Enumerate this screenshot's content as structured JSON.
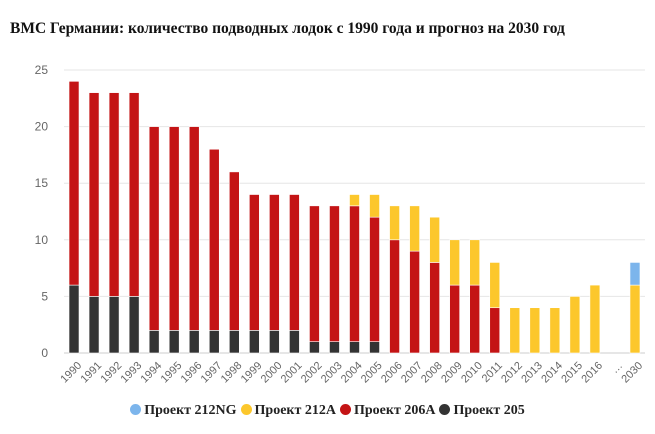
{
  "chart_data": {
    "type": "bar",
    "stacked": true,
    "title": "ВМС Германии: количество подводных лодок с 1990 года и прогноз на 2030 год",
    "xlabel": "",
    "ylabel": "",
    "ylim": [
      0,
      25
    ],
    "yticks": [
      0,
      5,
      10,
      15,
      20,
      25
    ],
    "grid": true,
    "legend_position": "bottom",
    "categories": [
      "1990",
      "1991",
      "1992",
      "1993",
      "1994",
      "1995",
      "1996",
      "1997",
      "1998",
      "1999",
      "2000",
      "2001",
      "2002",
      "2003",
      "2004",
      "2005",
      "2006",
      "2007",
      "2008",
      "2009",
      "2010",
      "2011",
      "2012",
      "2013",
      "2014",
      "2015",
      "2016",
      "…",
      "2030"
    ],
    "series": [
      {
        "name": "Проект 205",
        "color": "#333333",
        "values": [
          6,
          5,
          5,
          5,
          2,
          2,
          2,
          2,
          2,
          2,
          2,
          2,
          1,
          1,
          1,
          1,
          0,
          0,
          0,
          0,
          0,
          0,
          0,
          0,
          0,
          0,
          0,
          0,
          0
        ]
      },
      {
        "name": "Проект 206А",
        "color": "#c41415",
        "values": [
          18,
          18,
          18,
          18,
          18,
          18,
          18,
          16,
          14,
          12,
          12,
          12,
          12,
          12,
          12,
          11,
          10,
          9,
          8,
          6,
          6,
          4,
          0,
          0,
          0,
          0,
          0,
          0,
          0
        ]
      },
      {
        "name": "Проект 212А",
        "color": "#fcc72c",
        "values": [
          0,
          0,
          0,
          0,
          0,
          0,
          0,
          0,
          0,
          0,
          0,
          0,
          0,
          0,
          1,
          2,
          3,
          4,
          4,
          4,
          4,
          4,
          4,
          4,
          4,
          5,
          6,
          0,
          6
        ]
      },
      {
        "name": "Проект 212NG",
        "color": "#7cb5ec",
        "values": [
          0,
          0,
          0,
          0,
          0,
          0,
          0,
          0,
          0,
          0,
          0,
          0,
          0,
          0,
          0,
          0,
          0,
          0,
          0,
          0,
          0,
          0,
          0,
          0,
          0,
          0,
          0,
          0,
          2
        ]
      }
    ],
    "legend_order": [
      "Проект 212NG",
      "Проект 212А",
      "Проект 206А",
      "Проект 205"
    ]
  }
}
